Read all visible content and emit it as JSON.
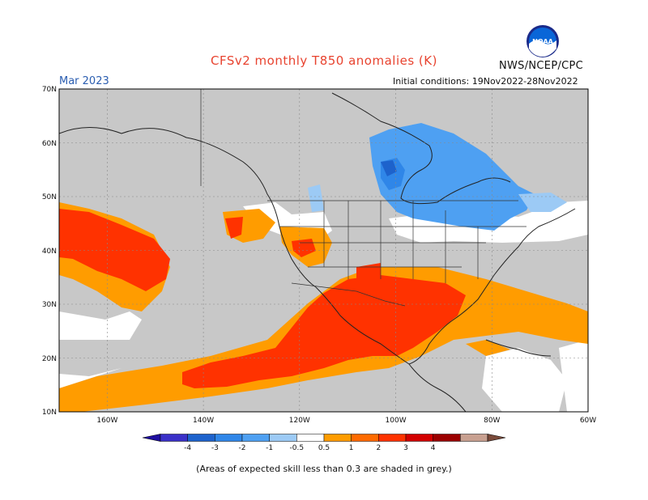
{
  "title": "CFSv2 monthly T850 anomalies (K)",
  "agency": "NWS/NCEP/CPC",
  "valid_month": "Mar 2023",
  "initial_conditions": "Initial conditions: 19Nov2022-28Nov2022",
  "footnote": "(Areas of expected skill less than 0.3 are shaded in grey.)",
  "logo": {
    "text": "NOAA",
    "icon": "noaa-logo-icon"
  },
  "map": {
    "lat_labels": [
      "70N",
      "60N",
      "50N",
      "40N",
      "30N",
      "20N",
      "10N"
    ],
    "lon_labels": [
      "160W",
      "140W",
      "120W",
      "100W",
      "80W",
      "60W"
    ],
    "lat_range": [
      10,
      70
    ],
    "lon_range": [
      -170,
      -60
    ],
    "low_skill_color": "#c8c8c8"
  },
  "legend": {
    "ticks": [
      "-4",
      "-3",
      "-2",
      "-1",
      "-0.5",
      "0.5",
      "1",
      "2",
      "3",
      "4"
    ],
    "colors": [
      "#1f0fa0",
      "#3a30c8",
      "#1d62cc",
      "#2f86e8",
      "#4ea0f2",
      "#9ccaf5",
      "#ffffff",
      "#ff9c00",
      "#ff6a00",
      "#ff3200",
      "#d20000",
      "#9b0000",
      "#c8a090",
      "#7a4a3a"
    ]
  }
}
